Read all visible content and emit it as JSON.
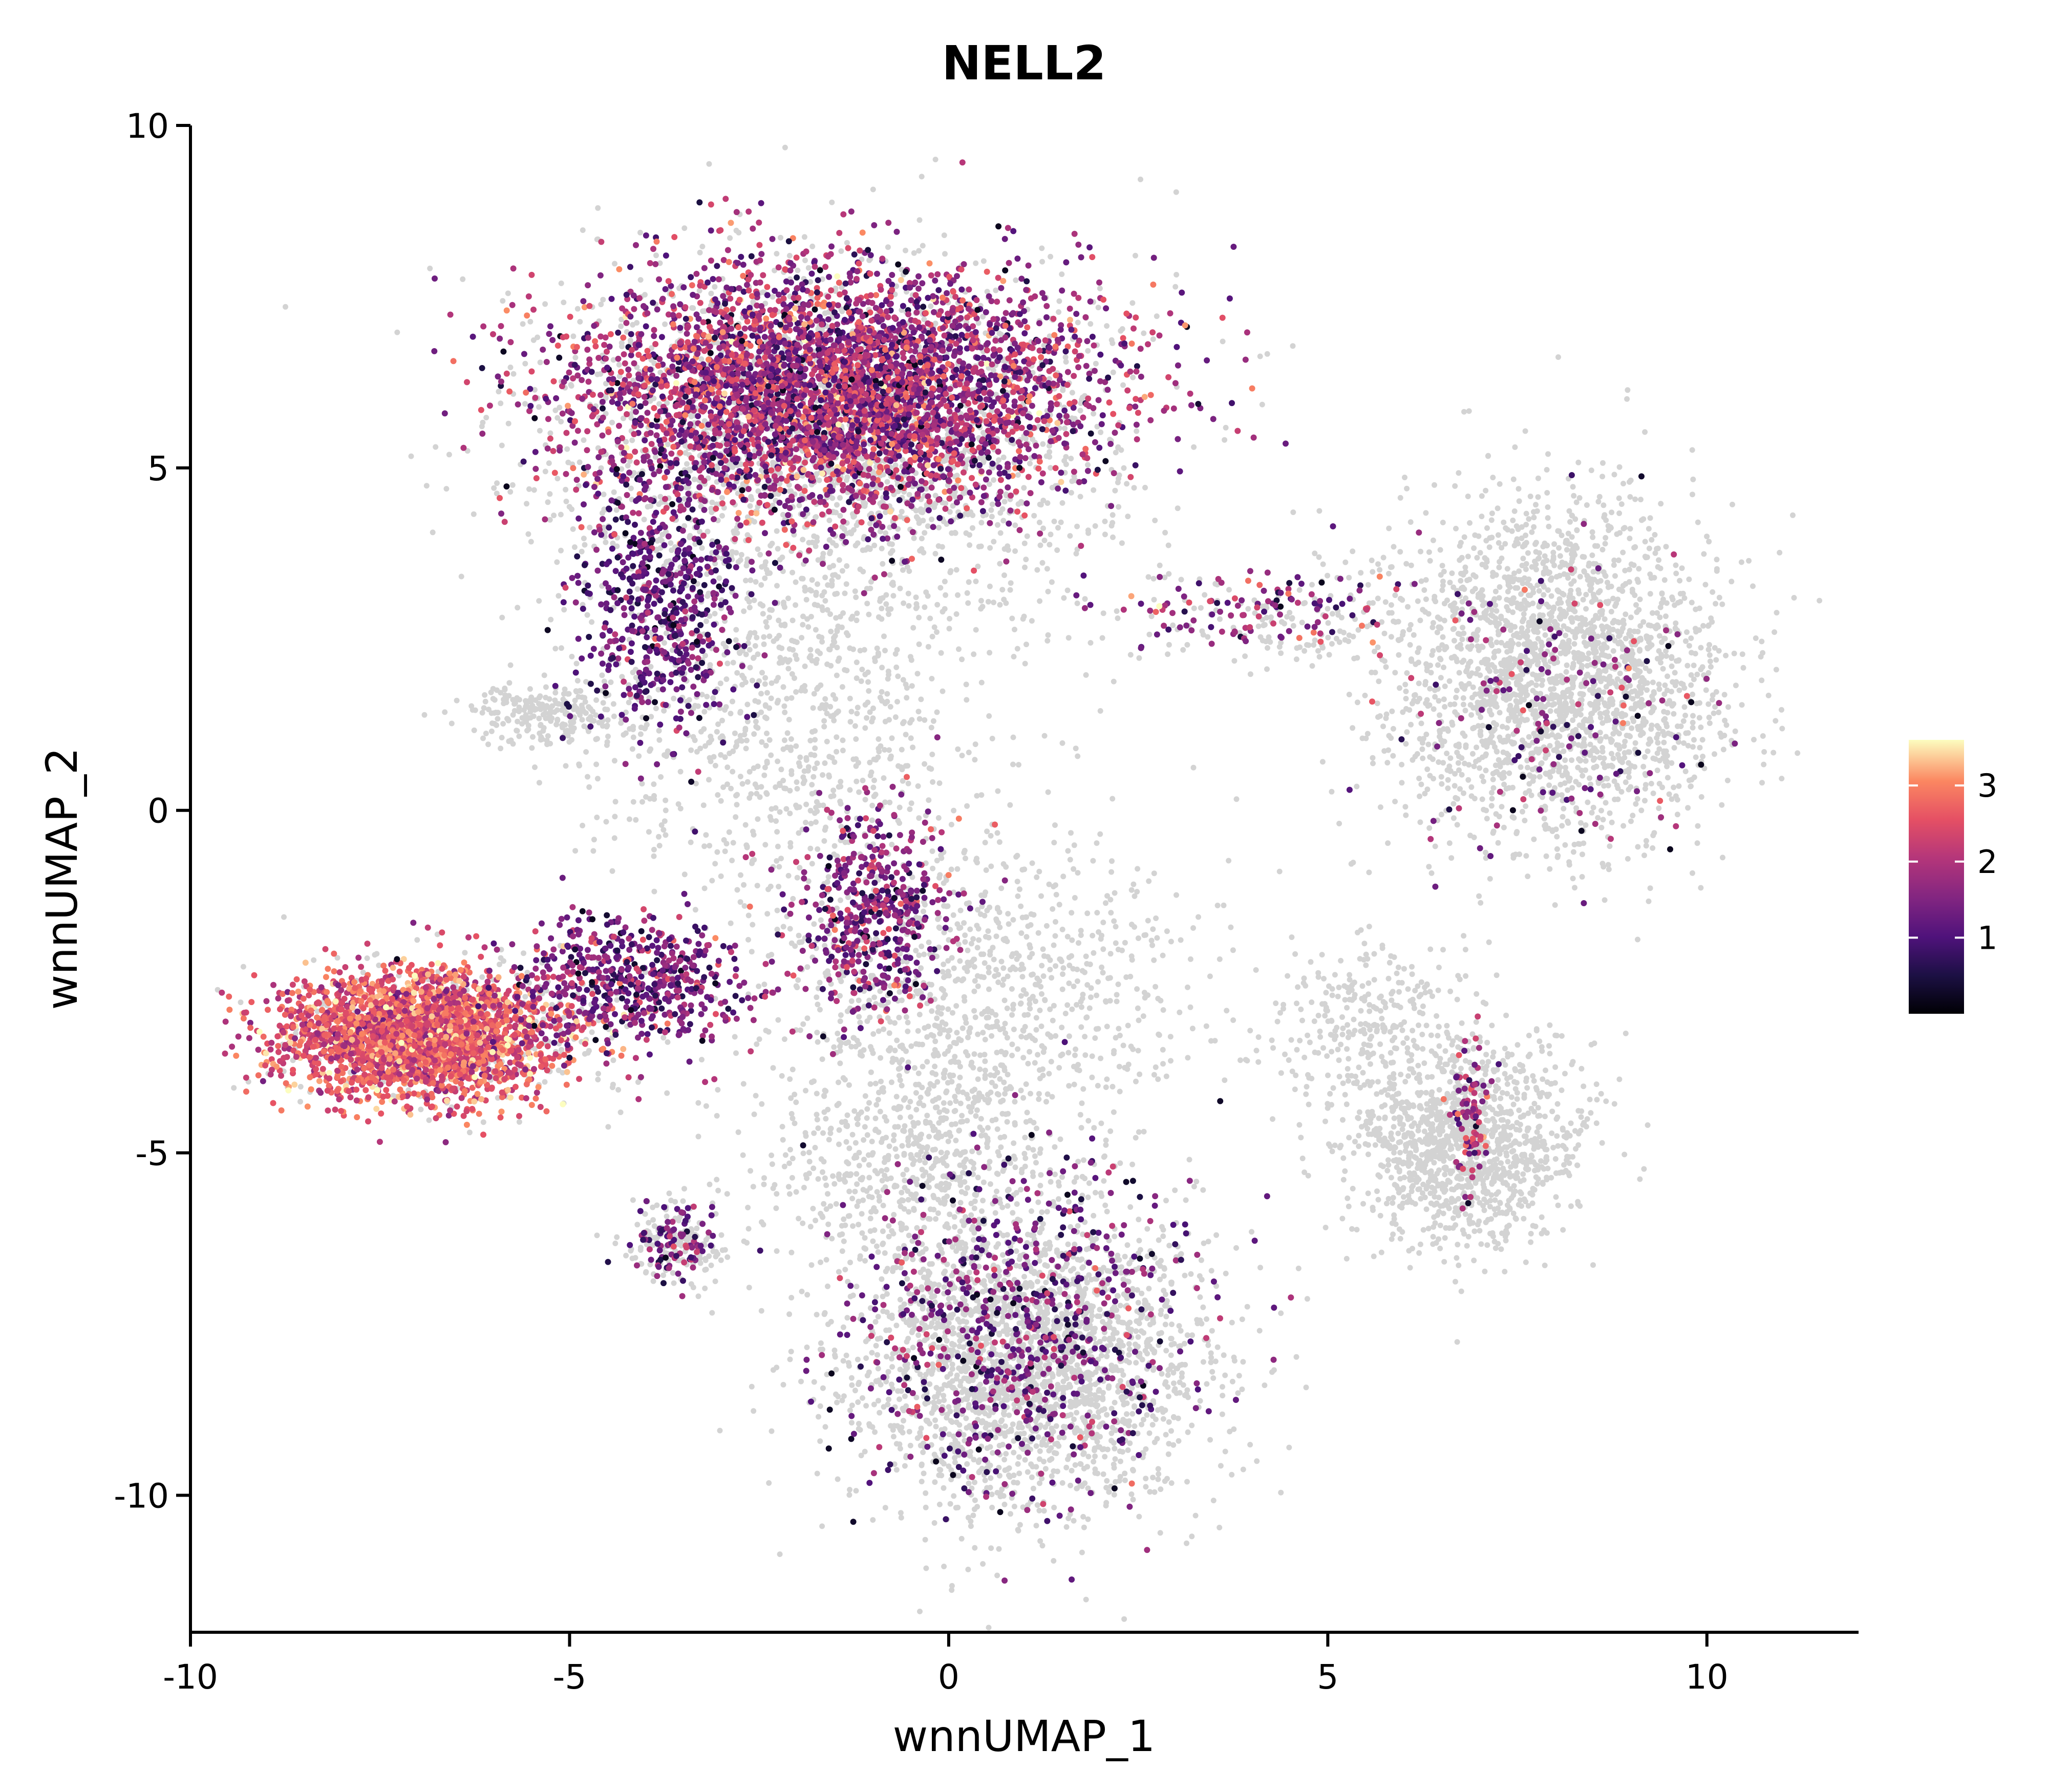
{
  "chart_data": {
    "type": "scatter",
    "title": "NELL2",
    "xlabel": "wnnUMAP_1",
    "ylabel": "wnnUMAP_2",
    "xlim": [
      -10,
      12
    ],
    "ylim": [
      -12,
      10
    ],
    "xticks": [
      -10,
      -5,
      0,
      5,
      10
    ],
    "xtick_labels": [
      "-10",
      "-5",
      "0",
      "5",
      "10"
    ],
    "yticks": [
      -10,
      -5,
      0,
      5,
      10
    ],
    "ytick_labels": [
      "-10",
      "-5",
      "0",
      "5",
      "10"
    ],
    "grid": false,
    "background_point_color": "#d3d3d3",
    "colormap": "magma",
    "colorbar": {
      "min": 0,
      "max": 3.6,
      "ticks": [
        1,
        2,
        3
      ],
      "tick_labels": [
        "1",
        "2",
        "3"
      ],
      "placement": "right"
    },
    "series": [
      {
        "kind": "background",
        "clusters": [
          {
            "cx": -1.5,
            "cy": 5.5,
            "sx": 3.3,
            "sy": 2.3,
            "n": 2200
          },
          {
            "cx": -2.2,
            "cy": 1.5,
            "sx": 2.5,
            "sy": 2.5,
            "n": 900
          },
          {
            "cx": 0.5,
            "cy": -2.5,
            "sx": 2.5,
            "sy": 2.0,
            "n": 900
          },
          {
            "cx": -6.5,
            "cy": -3.2,
            "sx": 2.3,
            "sy": 1.0,
            "n": 400
          },
          {
            "cx": 1.0,
            "cy": -8.0,
            "sx": 2.2,
            "sy": 2.0,
            "n": 2400
          },
          {
            "cx": -0.5,
            "cy": -5.0,
            "sx": 1.8,
            "sy": 1.5,
            "n": 700
          },
          {
            "cx": 8.0,
            "cy": 2.0,
            "sx": 2.0,
            "sy": 2.2,
            "n": 2400
          },
          {
            "cx": 6.8,
            "cy": -4.8,
            "sx": 1.4,
            "sy": 1.4,
            "n": 1300
          },
          {
            "cx": 5.5,
            "cy": -3.0,
            "sx": 1.2,
            "sy": 1.0,
            "n": 250
          },
          {
            "cx": -5.2,
            "cy": 1.4,
            "sx": 1.0,
            "sy": 0.4,
            "n": 250
          },
          {
            "cx": -3.6,
            "cy": -6.3,
            "sx": 0.6,
            "sy": 0.6,
            "n": 150
          },
          {
            "cx": 4.5,
            "cy": 2.8,
            "sx": 2.0,
            "sy": 0.6,
            "n": 150
          }
        ]
      },
      {
        "kind": "expression",
        "clusters": [
          {
            "cx": -1.5,
            "cy": 6.1,
            "sx": 3.2,
            "sy": 1.6,
            "n": 4200,
            "mean": 1.8,
            "sd": 0.7
          },
          {
            "cx": -3.8,
            "cy": 3.0,
            "sx": 1.0,
            "sy": 1.8,
            "n": 600,
            "mean": 1.2,
            "sd": 0.5
          },
          {
            "cx": -7.0,
            "cy": -3.3,
            "sx": 1.6,
            "sy": 0.8,
            "n": 2800,
            "mean": 2.6,
            "sd": 0.5
          },
          {
            "cx": -4.2,
            "cy": -2.5,
            "sx": 1.5,
            "sy": 0.9,
            "n": 600,
            "mean": 1.4,
            "sd": 0.6
          },
          {
            "cx": -1.0,
            "cy": -1.5,
            "sx": 0.9,
            "sy": 1.4,
            "n": 500,
            "mean": 1.5,
            "sd": 0.6
          },
          {
            "cx": 1.0,
            "cy": -7.5,
            "sx": 2.0,
            "sy": 2.2,
            "n": 700,
            "mean": 1.3,
            "sd": 0.6
          },
          {
            "cx": 8.0,
            "cy": 1.5,
            "sx": 1.8,
            "sy": 2.0,
            "n": 160,
            "mean": 1.4,
            "sd": 0.7
          },
          {
            "cx": 6.9,
            "cy": -4.5,
            "sx": 0.3,
            "sy": 1.0,
            "n": 90,
            "mean": 1.8,
            "sd": 0.7
          },
          {
            "cx": -3.6,
            "cy": -6.3,
            "sx": 0.5,
            "sy": 0.5,
            "n": 90,
            "mean": 1.3,
            "sd": 0.5
          },
          {
            "cx": 4.0,
            "cy": 3.0,
            "sx": 1.8,
            "sy": 0.5,
            "n": 120,
            "mean": 1.6,
            "sd": 0.7
          }
        ]
      }
    ]
  }
}
